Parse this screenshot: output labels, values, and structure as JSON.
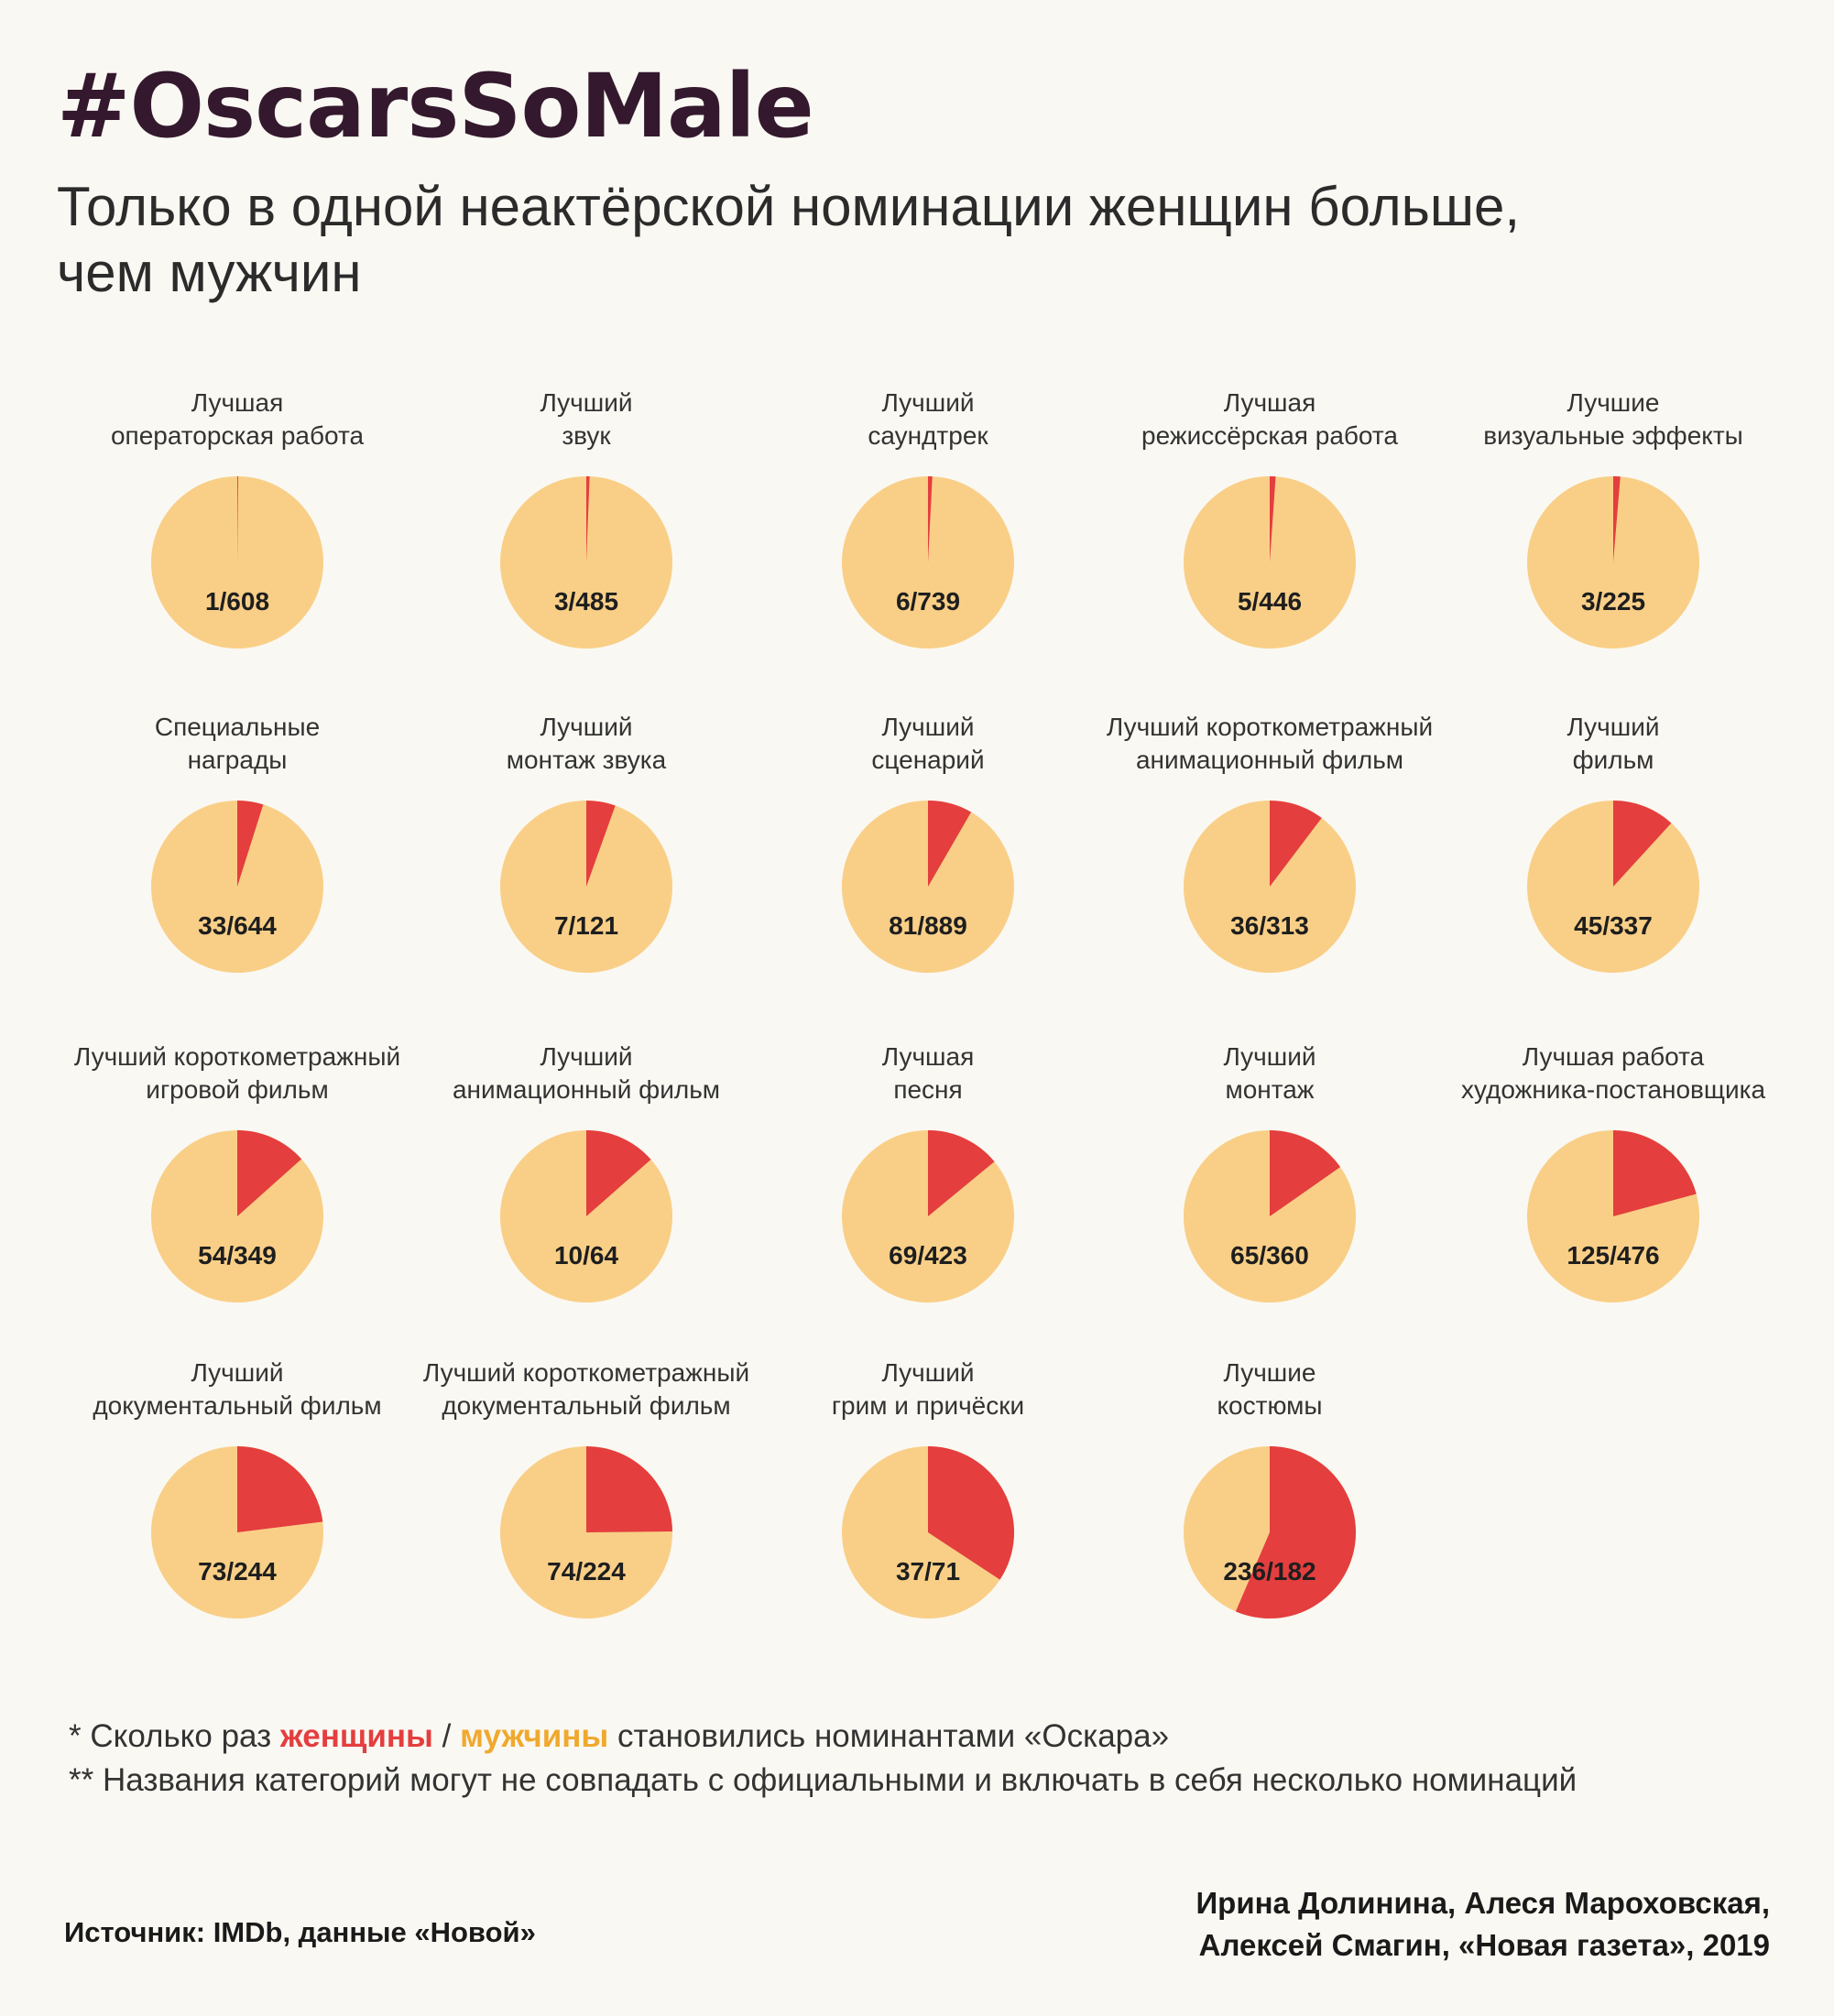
{
  "header": {
    "title": "#OscarsSoMale",
    "subtitle_line1": "Только в одной неактёрской номинации женщин больше,",
    "subtitle_line2": "чем мужчин"
  },
  "colors": {
    "women": "#e43e3e",
    "men": "#f9cf87"
  },
  "chart_data": {
    "type": "pie",
    "series": [
      {
        "name": "женщины"
      },
      {
        "name": "мужчины"
      }
    ],
    "pies": [
      {
        "label": [
          "Лучшая",
          "операторская работа"
        ],
        "women": 1,
        "men": 608
      },
      {
        "label": [
          "Лучший",
          "звук"
        ],
        "women": 3,
        "men": 485
      },
      {
        "label": [
          "Лучший",
          "саундтрек"
        ],
        "women": 6,
        "men": 739
      },
      {
        "label": [
          "Лучшая",
          "режиссёрская работа"
        ],
        "women": 5,
        "men": 446
      },
      {
        "label": [
          "Лучшие",
          "визуальные эффекты"
        ],
        "women": 3,
        "men": 225
      },
      {
        "label": [
          "Специальные",
          "награды"
        ],
        "women": 33,
        "men": 644
      },
      {
        "label": [
          "Лучший",
          "монтаж звука"
        ],
        "women": 7,
        "men": 121
      },
      {
        "label": [
          "Лучший",
          "сценарий"
        ],
        "women": 81,
        "men": 889
      },
      {
        "label": [
          "Лучший короткометражный",
          "анимационный фильм"
        ],
        "women": 36,
        "men": 313
      },
      {
        "label": [
          "Лучший",
          "фильм"
        ],
        "women": 45,
        "men": 337
      },
      {
        "label": [
          "Лучший короткометражный",
          "игровой фильм"
        ],
        "women": 54,
        "men": 349
      },
      {
        "label": [
          "Лучший",
          "анимационный фильм"
        ],
        "women": 10,
        "men": 64
      },
      {
        "label": [
          "Лучшая",
          "песня"
        ],
        "women": 69,
        "men": 423
      },
      {
        "label": [
          "Лучший",
          "монтаж"
        ],
        "women": 65,
        "men": 360
      },
      {
        "label": [
          "Лучшая работа",
          "художника-постановщика"
        ],
        "women": 125,
        "men": 476
      },
      {
        "label": [
          "Лучший",
          "документальный фильм"
        ],
        "women": 73,
        "men": 244
      },
      {
        "label": [
          "Лучший короткометражный",
          "документальный фильм"
        ],
        "women": 74,
        "men": 224
      },
      {
        "label": [
          "Лучший",
          "грим и причёски"
        ],
        "women": 37,
        "men": 71
      },
      {
        "label": [
          "Лучшие",
          "костюмы"
        ],
        "women": 236,
        "men": 182
      }
    ]
  },
  "notes": {
    "line1_prefix": "* Сколько раз ",
    "line1_women": "женщины",
    "line1_sep": " / ",
    "line1_men": "мужчины",
    "line1_suffix": " становились номинантами «Оскара»",
    "line2": "** Названия категорий могут не совпадать с официальными и включать в себя несколько номинаций"
  },
  "footer": {
    "source": "Источник: IMDb, данные «Новой»",
    "credits_line1": "Ирина Долинина, Алеся Мароховская,",
    "credits_line2": "Алексей Смагин, «Новая газета», 2019"
  }
}
